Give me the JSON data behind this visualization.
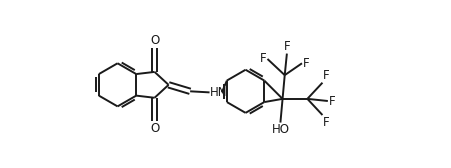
{
  "bg_color": "#ffffff",
  "line_color": "#1a1a1a",
  "text_color": "#1a1a1a",
  "line_width": 1.4,
  "font_size": 8.5,
  "figsize": [
    4.51,
    1.68
  ],
  "dpi": 100,
  "xlim": [
    0,
    451
  ],
  "ylim": [
    0,
    168
  ]
}
